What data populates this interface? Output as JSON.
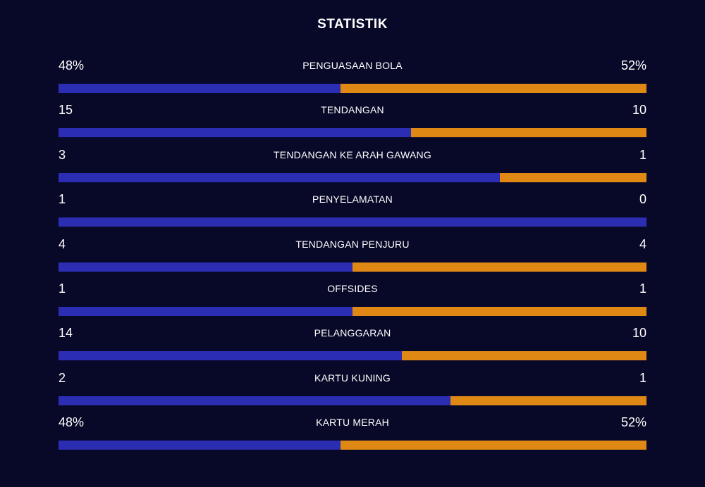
{
  "title": "STATISTIK",
  "colors": {
    "background": "#080828",
    "home": "#2b2db3",
    "away": "#e08814",
    "text": "#ffffff"
  },
  "chart_data": {
    "type": "bar",
    "title": "STATISTIK",
    "orientation": "horizontal-split",
    "rows": [
      {
        "label": "PENGUASAAN BOLA",
        "left_text": "48%",
        "right_text": "52%",
        "left": 48,
        "right": 52
      },
      {
        "label": "TENDANGAN",
        "left_text": "15",
        "right_text": "10",
        "left": 15,
        "right": 10
      },
      {
        "label": "TENDANGAN KE ARAH GAWANG",
        "left_text": "3",
        "right_text": "1",
        "left": 3,
        "right": 1
      },
      {
        "label": "PENYELAMATAN",
        "left_text": "1",
        "right_text": "0",
        "left": 1,
        "right": 0
      },
      {
        "label": "TENDANGAN PENJURU",
        "left_text": "4",
        "right_text": "4",
        "left": 4,
        "right": 4
      },
      {
        "label": "OFFSIDES",
        "left_text": "1",
        "right_text": "1",
        "left": 1,
        "right": 1
      },
      {
        "label": "PELANGGARAN",
        "left_text": "14",
        "right_text": "10",
        "left": 14,
        "right": 10
      },
      {
        "label": "KARTU KUNING",
        "left_text": "2",
        "right_text": "1",
        "left": 2,
        "right": 1
      },
      {
        "label": "KARTU MERAH",
        "left_text": "48%",
        "right_text": "52%",
        "left": 48,
        "right": 52
      }
    ]
  }
}
